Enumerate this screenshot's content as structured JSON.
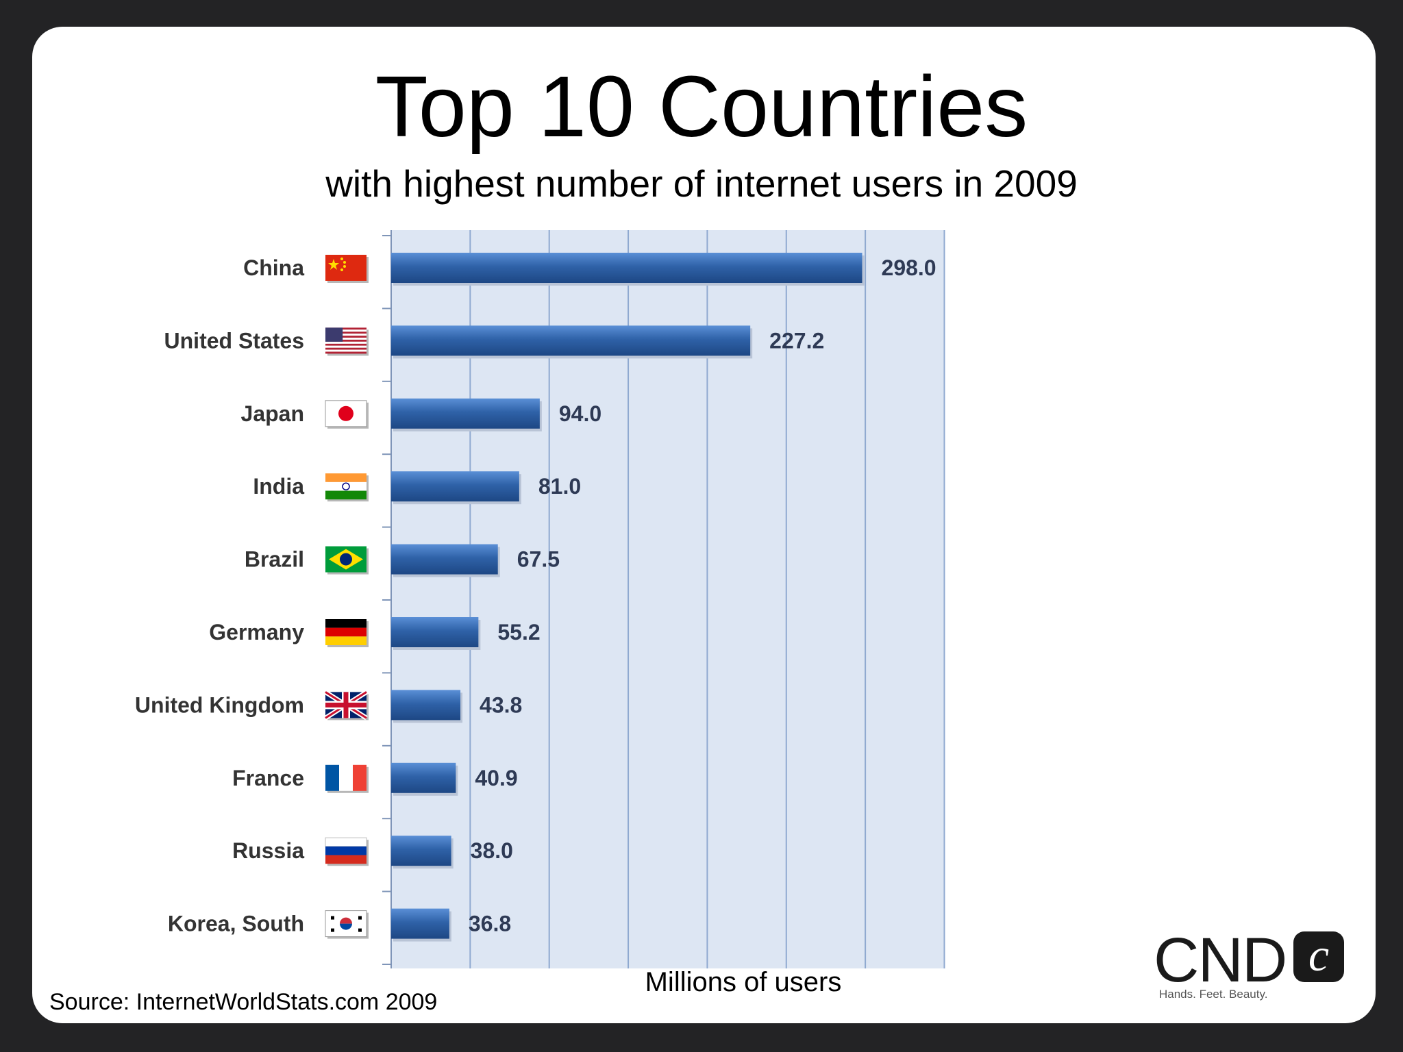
{
  "title": "Top 10 Countries",
  "subtitle": "with highest number of internet users in 2009",
  "source": "Source: InternetWorldStats.com 2009",
  "logo": {
    "text": "CND",
    "mark": "c",
    "tagline": "Hands. Feet. Beauty."
  },
  "colors": {
    "bar": "#2f62a8",
    "plot_bg": "#dde6f3",
    "grid": "#8fa9d0"
  },
  "chart_data": {
    "type": "bar",
    "orientation": "horizontal",
    "title": "Top 10 Countries",
    "subtitle": "with highest number of internet users in 2009",
    "xlabel": "Millions of users",
    "ylabel": "",
    "xlim": [
      0,
      350
    ],
    "grid": true,
    "categories": [
      "China",
      "United States",
      "Japan",
      "India",
      "Brazil",
      "Germany",
      "United Kingdom",
      "France",
      "Russia",
      "Korea, South"
    ],
    "values": [
      298.0,
      227.2,
      94.0,
      81.0,
      67.5,
      55.2,
      43.8,
      40.9,
      38.0,
      36.8
    ],
    "value_labels": [
      "298.0",
      "227.2",
      "94.0",
      "81.0",
      "67.5",
      "55.2",
      "43.8",
      "40.9",
      "38.0",
      "36.8"
    ],
    "flags": [
      "china-flag-icon",
      "united-states-flag-icon",
      "japan-flag-icon",
      "india-flag-icon",
      "brazil-flag-icon",
      "germany-flag-icon",
      "united-kingdom-flag-icon",
      "france-flag-icon",
      "russia-flag-icon",
      "korea-south-flag-icon"
    ]
  }
}
